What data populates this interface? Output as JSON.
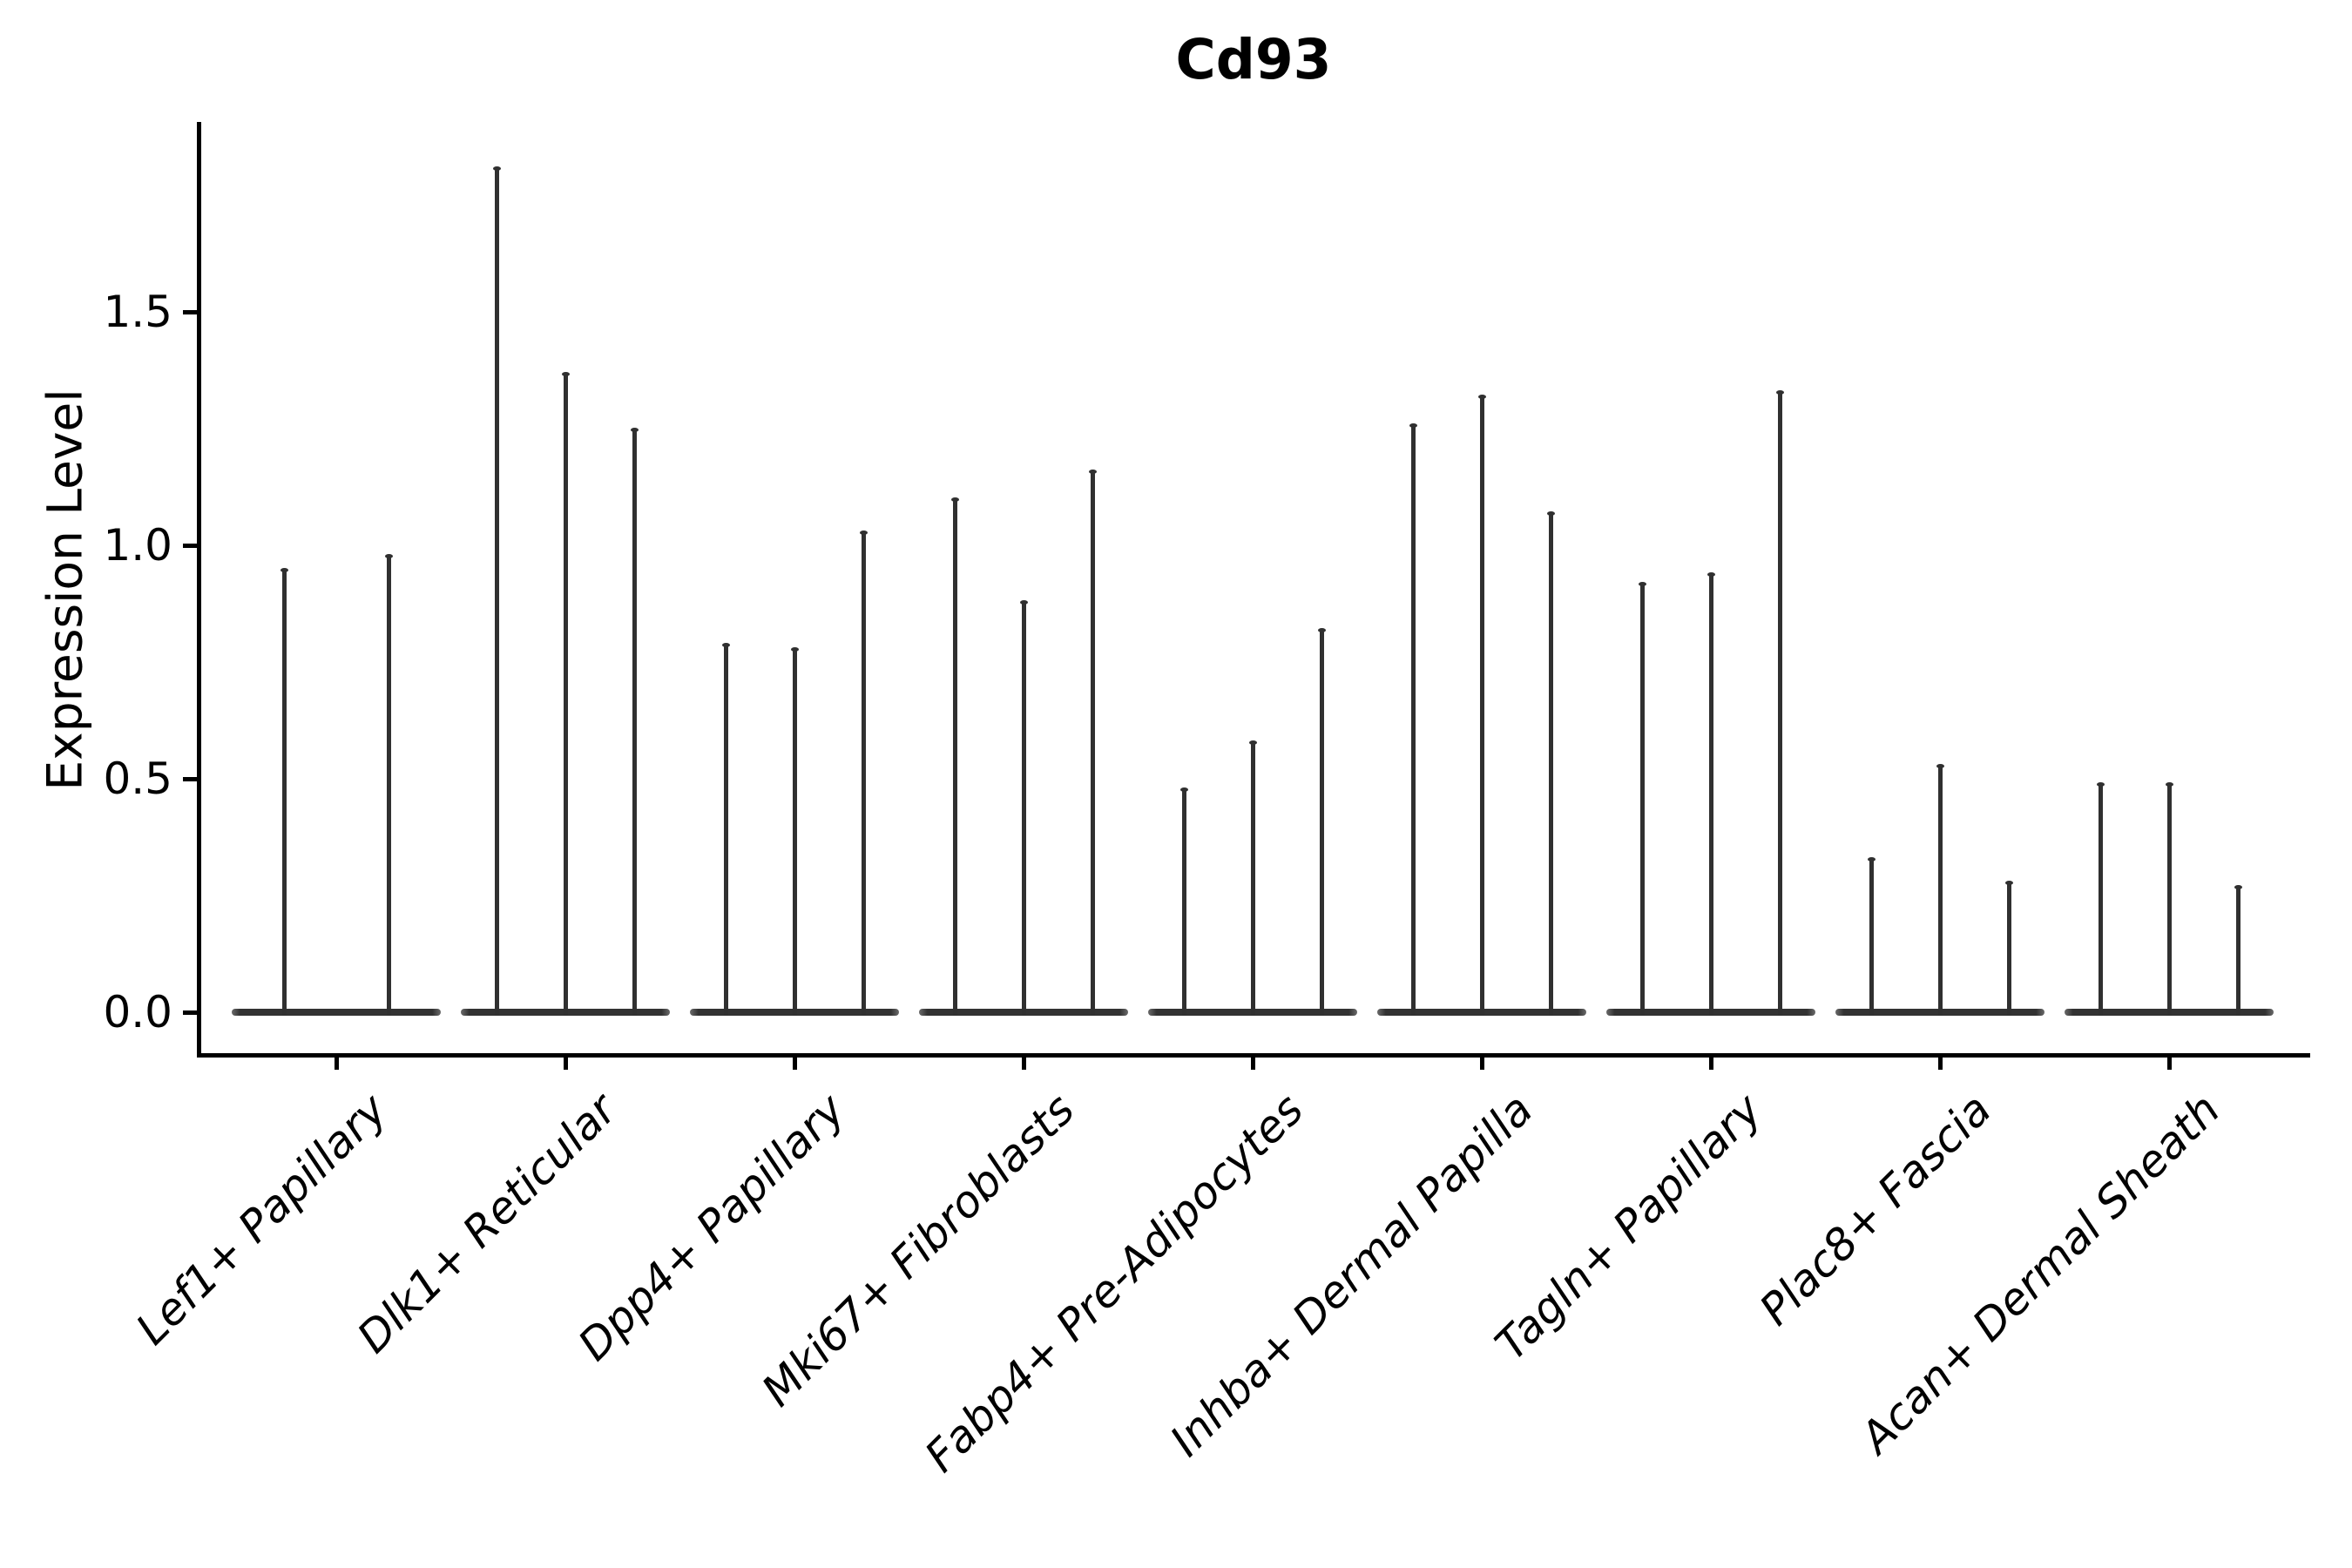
{
  "title": "Cd93",
  "y_axis": {
    "label": "Expression Level",
    "tick_labels": [
      "0.0",
      "0.5",
      "1.0",
      "1.5"
    ]
  },
  "chart_data": {
    "type": "violin",
    "title": "Cd93",
    "xlabel": "",
    "ylabel": "Expression Level",
    "ylim": [
      0,
      1.9
    ],
    "yticks": [
      0.0,
      0.5,
      1.0,
      1.5
    ],
    "ytick_labels": [
      "0.0",
      "0.5",
      "1.0",
      "1.5"
    ],
    "grid": false,
    "legend_position": "none",
    "categories": [
      "Lef1+ Papillary",
      "Dlk1+ Reticular",
      "Dpp4+ Papillary",
      "Mki67+ Fibroblasts",
      "Fabp4+ Pre-Adipocytes",
      "Inhba+ Dermal Papilla",
      "Tagln+ Papillary",
      "Plac8+ Fascia",
      "Acan+ Dermal Sheath"
    ],
    "groups": [
      {
        "category": "Lef1+ Papillary",
        "violin_max_values": [
          0.95,
          0.98
        ]
      },
      {
        "category": "Dlk1+ Reticular",
        "violin_max_values": [
          1.81,
          1.37,
          1.25
        ]
      },
      {
        "category": "Dpp4+ Papillary",
        "violin_max_values": [
          0.79,
          0.78,
          1.03
        ]
      },
      {
        "category": "Mki67+ Fibroblasts",
        "violin_max_values": [
          1.1,
          0.88,
          1.16
        ]
      },
      {
        "category": "Fabp4+ Pre-Adipocytes",
        "violin_max_values": [
          0.48,
          0.58,
          0.82
        ]
      },
      {
        "category": "Inhba+ Dermal Papilla",
        "violin_max_values": [
          1.26,
          1.32,
          1.07
        ]
      },
      {
        "category": "Tagln+ Papillary",
        "violin_max_values": [
          0.92,
          0.94,
          1.33
        ]
      },
      {
        "category": "Plac8+ Fascia",
        "violin_max_values": [
          0.33,
          0.53,
          0.28
        ]
      },
      {
        "category": "Acan+ Dermal Sheath",
        "violin_max_values": [
          0.49,
          0.49,
          0.27
        ]
      }
    ],
    "colors": {
      "violin": "#303030",
      "axis": "#000000",
      "text": "#000000",
      "background": "#ffffff"
    }
  }
}
